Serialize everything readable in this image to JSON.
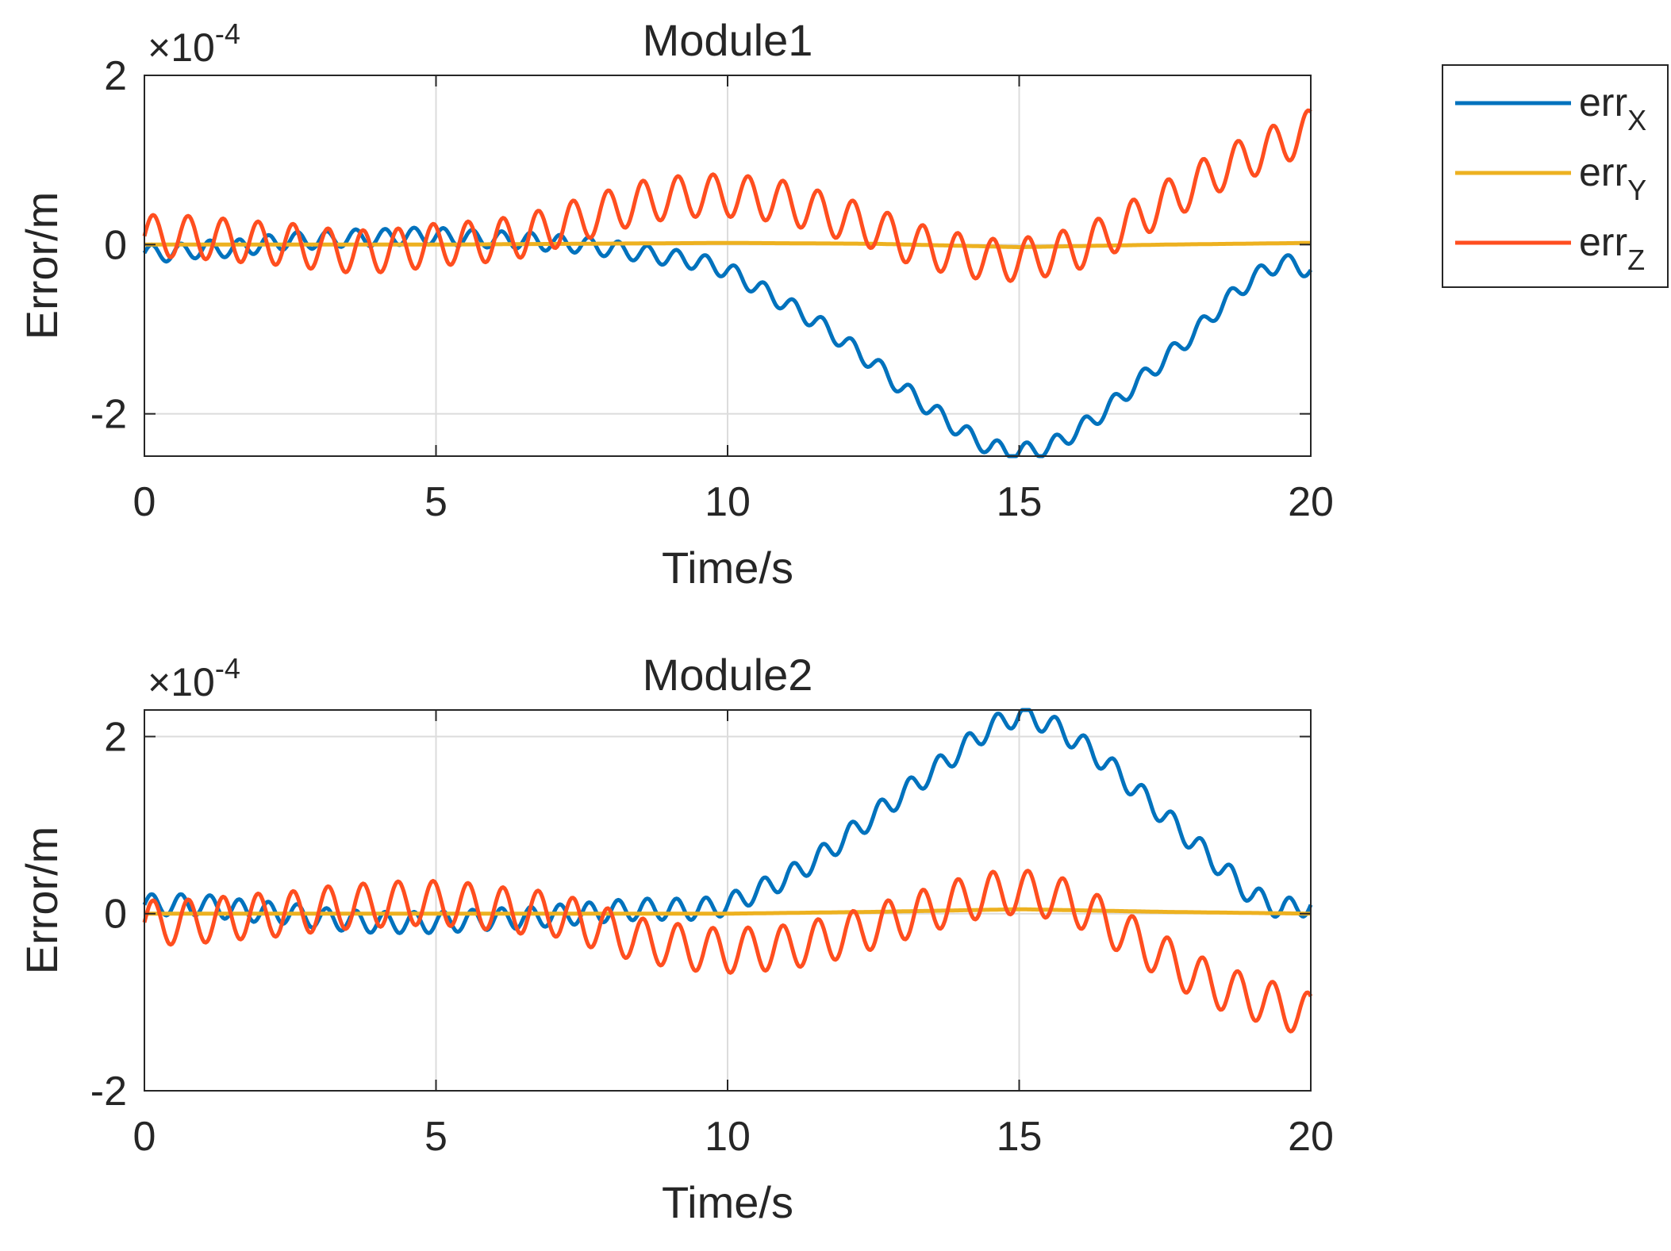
{
  "figure": {
    "legend": {
      "placement": "outside-top-right",
      "entries": [
        {
          "base": "err",
          "sub": "X",
          "color": "#0072BD"
        },
        {
          "base": "err",
          "sub": "Y",
          "color": "#EDB120"
        },
        {
          "base": "err",
          "sub": "Z",
          "color": "#FF4E1F"
        }
      ]
    }
  },
  "chart_data": [
    {
      "type": "line",
      "title": "Module1",
      "xlabel": "Time/s",
      "ylabel": "Error/m",
      "exponent_label": {
        "prefix": "×10",
        "power": "-4"
      },
      "xlim": [
        0,
        20
      ],
      "ylim": [
        -2.5,
        2
      ],
      "xticks": [
        0,
        5,
        10,
        15,
        20
      ],
      "xtick_labels": [
        "0",
        "5",
        "10",
        "15",
        "20"
      ],
      "yticks": [
        -2,
        0,
        2
      ],
      "ytick_labels": [
        "-2",
        "0",
        "2"
      ],
      "grid": true,
      "units_note": "y values in units of 1e-4 m",
      "series": [
        {
          "name": "errX",
          "color": "#0072BD",
          "x": [
            0,
            0.5,
            1,
            1.5,
            2,
            2.5,
            3,
            3.5,
            4,
            4.5,
            5,
            5.5,
            6,
            6.5,
            7,
            7.5,
            8,
            8.5,
            9,
            9.5,
            10,
            10.5,
            11,
            11.5,
            12,
            12.5,
            13,
            13.5,
            14,
            14.5,
            15,
            15.5,
            16,
            16.5,
            17,
            17.5,
            18,
            18.5,
            19,
            19.5,
            20
          ],
          "y": [
            -0.1,
            -0.1,
            -0.05,
            -0.05,
            0,
            0.05,
            0.05,
            0.08,
            0.08,
            0.1,
            0.1,
            0.08,
            0.06,
            0.05,
            0.02,
            0,
            -0.05,
            -0.1,
            -0.15,
            -0.2,
            -0.3,
            -0.5,
            -0.7,
            -0.9,
            -1.15,
            -1.4,
            -1.7,
            -1.95,
            -2.2,
            -2.4,
            -2.45,
            -2.4,
            -2.2,
            -1.95,
            -1.65,
            -1.35,
            -1.05,
            -0.7,
            -0.4,
            -0.2,
            -0.3
          ],
          "oscillation": {
            "amplitude": 0.1,
            "period_s": 0.5
          }
        },
        {
          "name": "errY",
          "color": "#EDB120",
          "x": [
            0,
            2.5,
            5,
            7.5,
            10,
            12.5,
            15,
            17.5,
            20
          ],
          "y": [
            0,
            0,
            0,
            0.01,
            0.02,
            0.01,
            -0.03,
            0,
            0.02
          ]
        },
        {
          "name": "errZ",
          "color": "#FF4E1F",
          "x": [
            0,
            0.5,
            1,
            1.5,
            2,
            2.5,
            3,
            3.5,
            4,
            4.5,
            5,
            5.5,
            6,
            6.5,
            7,
            7.5,
            8,
            8.5,
            9,
            9.5,
            10,
            10.5,
            11,
            11.5,
            12,
            12.5,
            13,
            13.5,
            14,
            14.5,
            15,
            15.5,
            16,
            16.5,
            17,
            17.5,
            18,
            18.5,
            19,
            19.5,
            20
          ],
          "y": [
            0.1,
            0.1,
            0.08,
            0.05,
            0.02,
            0,
            -0.05,
            -0.08,
            -0.08,
            -0.05,
            0,
            0.02,
            0.05,
            0.1,
            0.2,
            0.3,
            0.4,
            0.5,
            0.55,
            0.58,
            0.58,
            0.55,
            0.5,
            0.4,
            0.3,
            0.2,
            0.05,
            -0.05,
            -0.12,
            -0.18,
            -0.18,
            -0.12,
            -0.05,
            0.1,
            0.3,
            0.5,
            0.7,
            0.9,
            1.05,
            1.2,
            1.35
          ],
          "oscillation": {
            "amplitude": 0.25,
            "period_s": 0.6
          }
        }
      ]
    },
    {
      "type": "line",
      "title": "Module2",
      "xlabel": "Time/s",
      "ylabel": "Error/m",
      "exponent_label": {
        "prefix": "×10",
        "power": "-4"
      },
      "xlim": [
        0,
        20
      ],
      "ylim": [
        -2,
        2.3
      ],
      "xticks": [
        0,
        5,
        10,
        15,
        20
      ],
      "xtick_labels": [
        "0",
        "5",
        "10",
        "15",
        "20"
      ],
      "yticks": [
        -2,
        0,
        2
      ],
      "ytick_labels": [
        "-2",
        "0",
        "2"
      ],
      "grid": true,
      "units_note": "y values in units of 1e-4 m",
      "series": [
        {
          "name": "errX",
          "color": "#0072BD",
          "x": [
            0,
            0.5,
            1,
            1.5,
            2,
            2.5,
            3,
            3.5,
            4,
            4.5,
            5,
            5.5,
            6,
            6.5,
            7,
            7.5,
            8,
            8.5,
            9,
            9.5,
            10,
            10.5,
            11,
            11.5,
            12,
            12.5,
            13,
            13.5,
            14,
            14.5,
            15,
            15.5,
            16,
            16.5,
            17,
            17.5,
            18,
            18.5,
            19,
            19.5,
            20
          ],
          "y": [
            0.1,
            0.1,
            0.1,
            0.05,
            0.02,
            0,
            -0.05,
            -0.08,
            -0.1,
            -0.1,
            -0.1,
            -0.08,
            -0.06,
            -0.05,
            -0.02,
            0,
            0.03,
            0.05,
            0.05,
            0.05,
            0.1,
            0.25,
            0.4,
            0.6,
            0.85,
            1.1,
            1.35,
            1.6,
            1.85,
            2.1,
            2.25,
            2.15,
            1.95,
            1.7,
            1.4,
            1.1,
            0.8,
            0.5,
            0.2,
            0.05,
            0.1
          ],
          "oscillation": {
            "amplitude": 0.12,
            "period_s": 0.5
          }
        },
        {
          "name": "errY",
          "color": "#EDB120",
          "x": [
            0,
            2.5,
            5,
            7.5,
            10,
            12.5,
            15,
            17.5,
            20
          ],
          "y": [
            0,
            0,
            0,
            0,
            0,
            0.02,
            0.05,
            0.02,
            0
          ]
        },
        {
          "name": "errZ",
          "color": "#FF4E1F",
          "x": [
            0,
            0.5,
            1,
            1.5,
            2,
            2.5,
            3,
            3.5,
            4,
            4.5,
            5,
            5.5,
            6,
            6.5,
            7,
            7.5,
            8,
            8.5,
            9,
            9.5,
            10,
            10.5,
            11,
            11.5,
            12,
            12.5,
            13,
            13.5,
            14,
            14.5,
            15,
            15.5,
            16,
            16.5,
            17,
            17.5,
            18,
            18.5,
            19,
            19.5,
            20
          ],
          "y": [
            -0.1,
            -0.1,
            -0.08,
            -0.05,
            -0.02,
            0,
            0.05,
            0.08,
            0.1,
            0.12,
            0.12,
            0.1,
            0.06,
            0.02,
            0,
            -0.1,
            -0.2,
            -0.3,
            -0.35,
            -0.4,
            -0.42,
            -0.4,
            -0.38,
            -0.32,
            -0.25,
            -0.15,
            -0.05,
            0.05,
            0.15,
            0.22,
            0.25,
            0.2,
            0.1,
            -0.1,
            -0.3,
            -0.5,
            -0.7,
            -0.85,
            -0.95,
            -1.05,
            -1.15
          ],
          "oscillation": {
            "amplitude": 0.25,
            "period_s": 0.6
          }
        }
      ]
    }
  ]
}
